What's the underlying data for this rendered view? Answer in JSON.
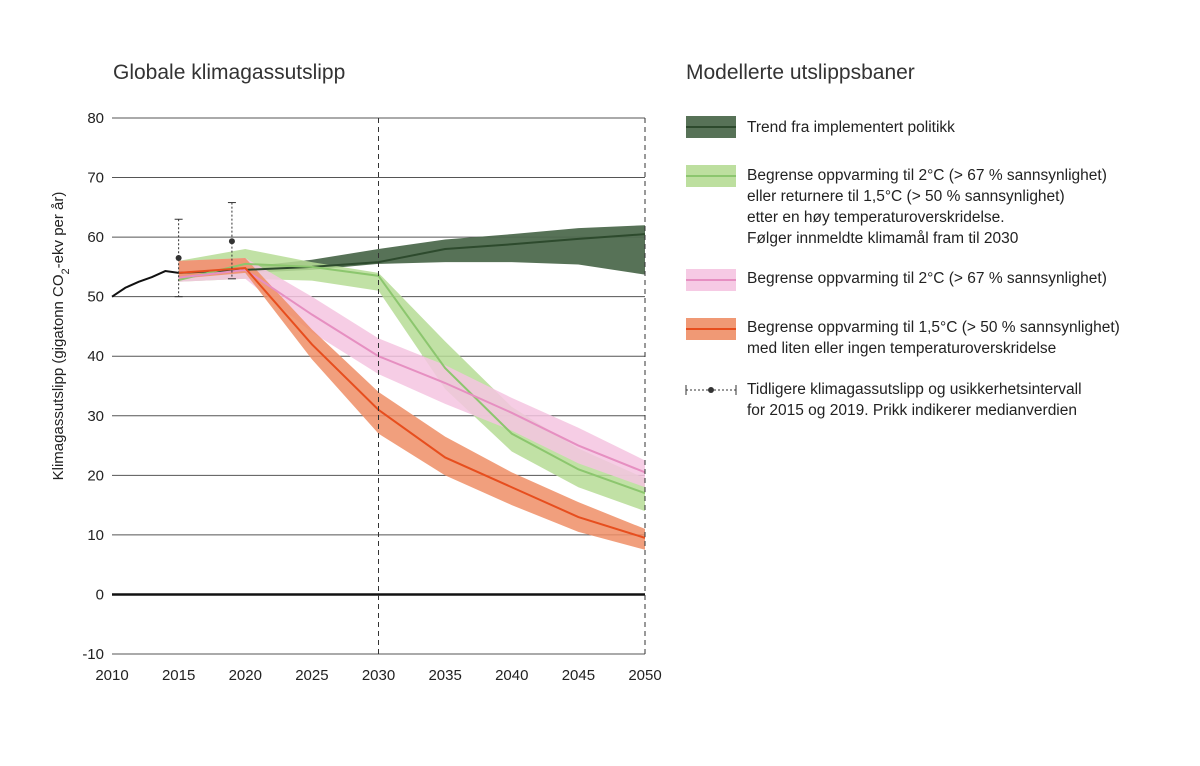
{
  "chart_title": "Globale klimagassutslipp",
  "legend_title": "Modellerte utslippsbaner",
  "chart_data": {
    "type": "area",
    "title": "Globale klimagassutslipp",
    "ylabel_pre": "Klimagassutslipp (gigatonn CO",
    "ylabel_sub": "2",
    "ylabel_post": "-ekv per år)",
    "xlim": [
      2010,
      2050
    ],
    "ylim": [
      -10,
      80
    ],
    "x_ticks": [
      "2010",
      "2015",
      "2020",
      "2025",
      "2030",
      "2035",
      "2040",
      "2045",
      "2050"
    ],
    "y_ticks": [
      "80",
      "70",
      "60",
      "50",
      "40",
      "30",
      "20",
      "10",
      "0",
      "-10"
    ],
    "y_tick_values": [
      80,
      70,
      60,
      50,
      40,
      30,
      20,
      10,
      0,
      -10
    ],
    "grid": true,
    "reference_lines_x": [
      2030,
      2050
    ],
    "zero_line": true,
    "historical": {
      "x": [
        2010,
        2011,
        2012,
        2013,
        2014,
        2015
      ],
      "y": [
        50.0,
        51.5,
        52.5,
        53.3,
        54.3,
        54.0
      ]
    },
    "series": [
      {
        "name": "Trend fra implementert politikk",
        "color": "#2d4a2d",
        "band_color": "#4e6a4e",
        "x": [
          2015,
          2020,
          2025,
          2030,
          2035,
          2040,
          2045,
          2050
        ],
        "y": [
          54.0,
          54.5,
          55.0,
          55.8,
          58.0,
          58.8,
          59.7,
          60.5
        ],
        "lower": [
          54.0,
          54.0,
          54.5,
          55.5,
          55.8,
          55.8,
          55.4,
          53.7
        ],
        "upper": [
          54.0,
          55.0,
          56.2,
          58.0,
          59.6,
          60.5,
          61.5,
          62.0
        ]
      },
      {
        "name": "Begrense oppvarming til 2°C (> 67 % sannsynlighet) eller returnere til 1,5°C (> 50 % sannsynlighet) etter en høy temperaturoverskridelse. Følger innmeldte klimamål fram til 2030",
        "color": "#8cc66e",
        "band_color": "#b6dc95",
        "x": [
          2015,
          2020,
          2025,
          2030,
          2035,
          2040,
          2045,
          2050
        ],
        "y": [
          52.8,
          55.5,
          55.0,
          53.5,
          38.0,
          27.0,
          21.0,
          17.0
        ],
        "lower": [
          52.5,
          53.0,
          52.7,
          51.0,
          34.5,
          24.0,
          18.0,
          14.0
        ],
        "upper": [
          56.0,
          58.0,
          55.8,
          54.0,
          42.5,
          31.5,
          24.5,
          19.5
        ]
      },
      {
        "name": "Begrense oppvarming til 2°C (> 67 % sannsynlighet)",
        "color": "#e68fc1",
        "band_color": "#f5c4e1",
        "x": [
          2015,
          2020,
          2025,
          2030,
          2035,
          2040,
          2045,
          2050
        ],
        "y": [
          53.2,
          54.5,
          47.0,
          40.0,
          35.5,
          30.5,
          25.0,
          20.5
        ],
        "lower": [
          52.5,
          53.0,
          44.0,
          37.0,
          32.0,
          27.5,
          22.0,
          18.0
        ],
        "upper": [
          56.0,
          56.5,
          50.0,
          43.0,
          38.5,
          33.0,
          28.0,
          22.5
        ]
      },
      {
        "name": "Begrense oppvarming til 1,5°C (> 50 % sannsynlighet) med liten eller ingen temperaturoverskridelse",
        "color": "#e74e1e",
        "band_color": "#ee8e66",
        "x": [
          2015,
          2020,
          2025,
          2030,
          2035,
          2040,
          2045,
          2050
        ],
        "y": [
          54.0,
          54.8,
          42.0,
          31.0,
          23.0,
          18.0,
          13.0,
          9.5
        ],
        "lower": [
          53.0,
          54.0,
          39.5,
          27.0,
          20.0,
          15.0,
          10.5,
          7.5
        ],
        "upper": [
          56.0,
          56.5,
          44.5,
          34.0,
          26.5,
          20.5,
          15.5,
          11.0
        ]
      }
    ],
    "error_bars": [
      {
        "x": 2015,
        "median": 56.5,
        "low": 50.0,
        "high": 63.0
      },
      {
        "x": 2019,
        "median": 59.3,
        "low": 53.0,
        "high": 65.8
      }
    ]
  },
  "legend": {
    "items": [
      {
        "key": "policy",
        "lines": [
          "Trend fra implementert politikk"
        ]
      },
      {
        "key": "overshoot",
        "lines": [
          "Begrense oppvarming til 2°C (> 67 % sannsynlighet)",
          "eller returnere til 1,5°C  (> 50 % sannsynlighet)",
          "etter en høy temperaturoverskridelse.",
          "Følger innmeldte klimamål fram til 2030"
        ]
      },
      {
        "key": "two_deg",
        "lines": [
          "Begrense oppvarming til 2°C (> 67 % sannsynlighet)"
        ]
      },
      {
        "key": "onefive",
        "lines": [
          "Begrense oppvarming til 1,5°C (> 50 % sannsynlighet)",
          "med liten eller ingen temperaturoverskridelse"
        ]
      },
      {
        "key": "hist",
        "lines": [
          "Tidligere klimagassutslipp og usikkerhetsintervall",
          "for 2015 og 2019. Prikk indikerer medianverdien"
        ]
      }
    ]
  }
}
